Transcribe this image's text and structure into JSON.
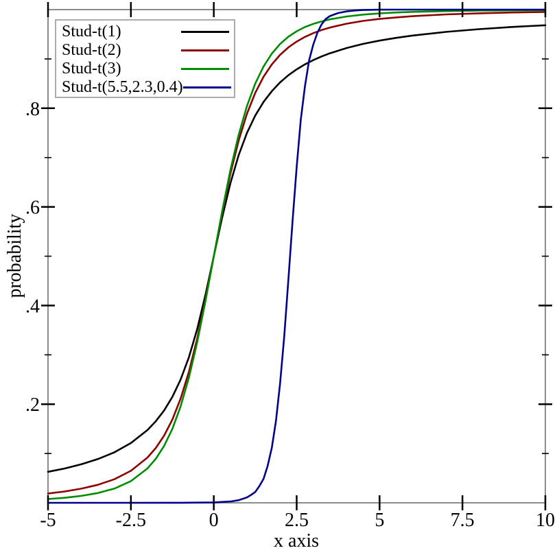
{
  "chart_data": {
    "type": "line",
    "title": "",
    "xlabel": "x axis",
    "ylabel": "probability",
    "xlim": [
      -5,
      10
    ],
    "ylim": [
      0,
      1
    ],
    "grid": false,
    "legend_position": "top-left",
    "axis_color": "#8c8c8c",
    "tick_color": "#000000",
    "x_ticks": {
      "values": [
        -5,
        -2.5,
        0,
        2.5,
        5,
        7.5,
        10
      ],
      "labels": [
        "-5",
        "-2.5",
        "0",
        "2.5",
        "5",
        "7.5",
        "10"
      ]
    },
    "y_ticks": {
      "values": [
        0.2,
        0.4,
        0.6,
        0.8
      ],
      "labels": [
        ".2",
        ".4",
        ".6",
        ".8"
      ],
      "minor": [
        0.1,
        0.3,
        0.5,
        0.7,
        0.9
      ]
    },
    "x": [
      -5,
      -4.5,
      -4,
      -3.5,
      -3,
      -2.5,
      -2,
      -1.75,
      -1.5,
      -1.25,
      -1,
      -0.75,
      -0.5,
      -0.25,
      0,
      0.25,
      0.5,
      0.75,
      1,
      1.25,
      1.5,
      1.75,
      2,
      2.25,
      2.5,
      2.75,
      3,
      3.25,
      3.5,
      4,
      4.5,
      5,
      5.5,
      6,
      7,
      8,
      9,
      10
    ],
    "series": [
      {
        "id": "stud-t-1",
        "name": "Stud-t(1)",
        "color": "#000000",
        "values": [
          0.0628,
          0.0696,
          0.078,
          0.0886,
          0.1024,
          0.1211,
          0.1476,
          0.1653,
          0.1872,
          0.2148,
          0.25,
          0.2952,
          0.3524,
          0.422,
          0.5,
          0.578,
          0.6476,
          0.7048,
          0.75,
          0.7852,
          0.8128,
          0.8347,
          0.8524,
          0.8669,
          0.8789,
          0.889,
          0.8976,
          0.905,
          0.9114,
          0.922,
          0.9304,
          0.9372,
          0.9427,
          0.9474,
          0.9548,
          0.9604,
          0.9648,
          0.9683
        ]
      },
      {
        "id": "stud-t-2",
        "name": "Stud-t(2)",
        "color": "#8b0000",
        "values": [
          0.0189,
          0.023,
          0.0286,
          0.0364,
          0.0477,
          0.0648,
          0.0918,
          0.1111,
          0.1362,
          0.1689,
          0.2113,
          0.2657,
          0.3333,
          0.413,
          0.5,
          0.587,
          0.6667,
          0.7343,
          0.7887,
          0.8311,
          0.8638,
          0.8889,
          0.9082,
          0.9233,
          0.9352,
          0.9446,
          0.9523,
          0.9585,
          0.9636,
          0.9714,
          0.977,
          0.9811,
          0.9842,
          0.9867,
          0.9902,
          0.9925,
          0.9941,
          0.9953
        ]
      },
      {
        "id": "stud-t-3",
        "name": "Stud-t(3)",
        "color": "#008c00",
        "values": [
          0.0076,
          0.0102,
          0.014,
          0.0198,
          0.0288,
          0.044,
          0.0697,
          0.0892,
          0.1153,
          0.1499,
          0.1955,
          0.2539,
          0.3257,
          0.4094,
          0.5,
          0.5906,
          0.6743,
          0.7461,
          0.8045,
          0.8501,
          0.8847,
          0.9108,
          0.9303,
          0.9451,
          0.956,
          0.9647,
          0.9711,
          0.9761,
          0.9802,
          0.986,
          0.9898,
          0.9924,
          0.9941,
          0.9954,
          0.997,
          0.9979,
          0.9985,
          0.9989
        ]
      },
      {
        "id": "stud-t-5-5-2-3-0-4",
        "name": "Stud-t(5.5,2.3,0.4)",
        "color": "#00008b",
        "x": [
          -5,
          -3,
          -1,
          0,
          0.5,
          0.75,
          1,
          1.125,
          1.25,
          1.375,
          1.5,
          1.625,
          1.75,
          1.875,
          2,
          2.125,
          2.25,
          2.375,
          2.5,
          2.625,
          2.75,
          2.875,
          3,
          3.125,
          3.25,
          3.375,
          3.5,
          3.75,
          4,
          4.25,
          4.5,
          5,
          5.5,
          6,
          7,
          8,
          9,
          10
        ],
        "values": [
          0,
          0,
          0.0001,
          0.0008,
          0.0027,
          0.0053,
          0.011,
          0.016,
          0.022,
          0.034,
          0.0485,
          0.075,
          0.112,
          0.166,
          0.242,
          0.338,
          0.4525,
          0.5715,
          0.681,
          0.777,
          0.845,
          0.897,
          0.929,
          0.953,
          0.97,
          0.981,
          0.9868,
          0.993,
          0.9962,
          0.9982,
          0.9991,
          0.9998,
          1,
          1,
          1,
          1,
          1,
          1
        ]
      }
    ]
  }
}
